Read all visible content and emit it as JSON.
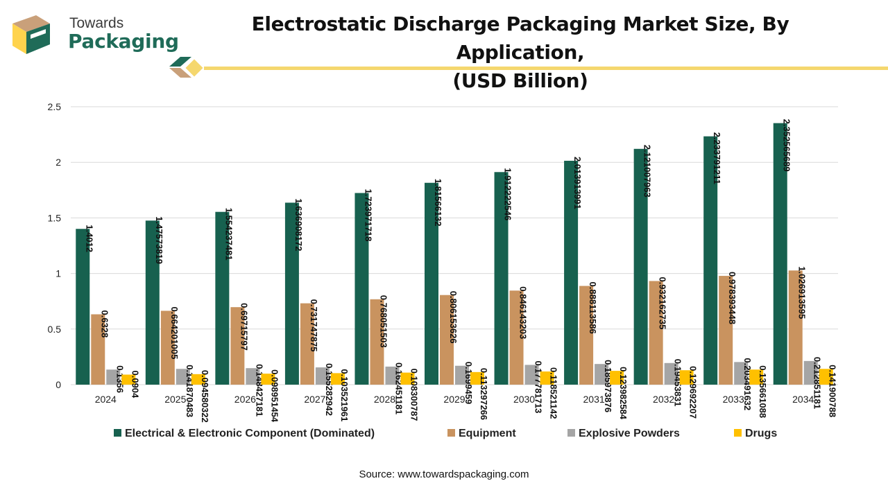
{
  "brand": {
    "line1": "Towards",
    "line2": "Packaging"
  },
  "title_line1": "Electrostatic Discharge Packaging Market Size, By Application,",
  "title_line2": "(USD Billion)",
  "source": "Source: www.towardspackaging.com",
  "colors": {
    "electrical": "#17614f",
    "equipment": "#c9935f",
    "explosive": "#a5a5a5",
    "drugs": "#ffc000",
    "accent_line": "#f5d76e"
  },
  "chart_data": {
    "type": "bar",
    "title": "Electrostatic Discharge Packaging Market Size, By Application, (USD Billion)",
    "categories": [
      "2024",
      "2025",
      "2026",
      "2027",
      "2028",
      "2029",
      "2030",
      "2031",
      "2032",
      "2033",
      "2034"
    ],
    "ylim": [
      0,
      2.5
    ],
    "yticks": [
      "0",
      "0.5",
      "1",
      "1.5",
      "2",
      "2.5"
    ],
    "grid": true,
    "legend_position": "bottom",
    "series": [
      {
        "name": "Electrical & Electronic Component (Dominated)",
        "color": "#17614f",
        "values": [
          1.4012,
          1.47573819,
          1.554237481,
          1.636908172,
          1.723971718,
          1.81566132,
          1.912222546,
          2.013913991,
          2.121007963,
          2.233791211,
          2.352565689
        ],
        "labels": [
          "1.4012",
          "1.47573819",
          "1.554237481",
          "1.636908172",
          "1.723971718",
          "1.81566132",
          "1.912222546",
          "2.013913991",
          "2.121007963",
          "2.233791211",
          "2.352565689"
        ]
      },
      {
        "name": "Equipment",
        "color": "#c9935f",
        "values": [
          0.6328,
          0.664201005,
          0.69715797,
          0.731747875,
          0.768051503,
          0.806153626,
          0.846143203,
          0.888113586,
          0.932162735,
          0.978393448,
          1.026913595
        ],
        "labels": [
          "0.6328",
          "0.664201005",
          "0.69715797",
          "0.731747875",
          "0.768051503",
          "0.806153626",
          "0.846143203",
          "0.888113586",
          "0.932162735",
          "0.978393448",
          "1.026913595"
        ]
      },
      {
        "name": "Explosive Powders",
        "color": "#a5a5a5",
        "values": [
          0.1356,
          0.141870483,
          0.148427181,
          0.155282942,
          0.162451181,
          0.1699459,
          0.177781713,
          0.185973876,
          0.19453831,
          0.203491632,
          0.212851181
        ],
        "labels": [
          "0.1356",
          "0.141870483",
          "0.148427181",
          "0.155282942",
          "0.162451181",
          "0.1699459",
          "0.177781713",
          "0.185973876",
          "0.19453831",
          "0.203491632",
          "0.212851181"
        ]
      },
      {
        "name": "Drugs",
        "color": "#ffc000",
        "values": [
          0.0904,
          0.094580322,
          0.098951454,
          0.103521961,
          0.108300787,
          0.113297266,
          0.118521142,
          0.123982584,
          0.129692207,
          0.135661088,
          0.141900788
        ],
        "labels": [
          "0.0904",
          "0.094580322",
          "0.098951454",
          "0.103521961",
          "0.108300787",
          "0.113297266",
          "0.118521142",
          "0.123982584",
          "0.129692207",
          "0.135661088",
          "0.141900788"
        ]
      }
    ]
  }
}
